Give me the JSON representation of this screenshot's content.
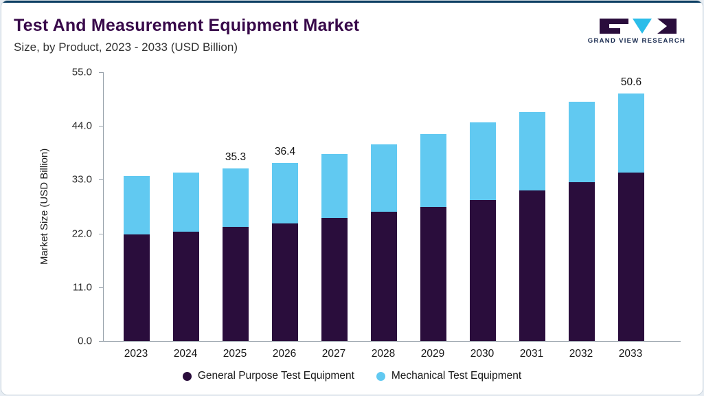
{
  "header": {
    "title": "Test And Measurement Equipment Market",
    "subtitle": "Size, by Product, 2023 - 2033 (USD Billion)"
  },
  "logo": {
    "text": "GRAND VIEW RESEARCH"
  },
  "colors": {
    "accent_line": "#0d3f63",
    "title": "#38094A",
    "general_purpose": "#2A0D3C",
    "mechanical": "#61C9F1",
    "logo_navy": "#17294e",
    "logo_cyan": "#2BBDE9"
  },
  "chart_data": {
    "type": "bar",
    "stacked": true,
    "title": "Test And Measurement Equipment Market Size, by Product, 2023 - 2033 (USD Billion)",
    "xlabel": "",
    "ylabel": "Market Size (USD Billion)",
    "ylim": [
      0,
      55
    ],
    "grid": false,
    "legend_position": "bottom",
    "categories": [
      "2023",
      "2024",
      "2025",
      "2026",
      "2027",
      "2028",
      "2029",
      "2030",
      "2031",
      "2032",
      "2033"
    ],
    "series": [
      {
        "name": "General Purpose Test Equipment",
        "color": "#2A0D3C",
        "values": [
          21.8,
          22.3,
          23.3,
          24.1,
          25.2,
          26.4,
          27.5,
          28.9,
          30.8,
          32.5,
          34.5
        ]
      },
      {
        "name": "Mechanical Test Equipment",
        "color": "#61C9F1",
        "values": [
          11.9,
          12.2,
          12.0,
          12.3,
          13.0,
          13.8,
          14.9,
          15.8,
          16.1,
          16.4,
          16.1
        ]
      }
    ],
    "totals": [
      33.7,
      34.5,
      35.3,
      36.4,
      38.2,
      40.2,
      42.4,
      44.7,
      46.9,
      48.9,
      50.6
    ],
    "total_labels": [
      "",
      "",
      "35.3",
      "36.4",
      "",
      "",
      "",
      "",
      "",
      "",
      "50.6"
    ],
    "yticks": [
      {
        "value": 0,
        "label": "0.0"
      },
      {
        "value": 11,
        "label": "11.0"
      },
      {
        "value": 22,
        "label": "22.0"
      },
      {
        "value": 33,
        "label": "33.0"
      },
      {
        "value": 44,
        "label": "44.0"
      },
      {
        "value": 55,
        "label": "55.0"
      }
    ]
  }
}
